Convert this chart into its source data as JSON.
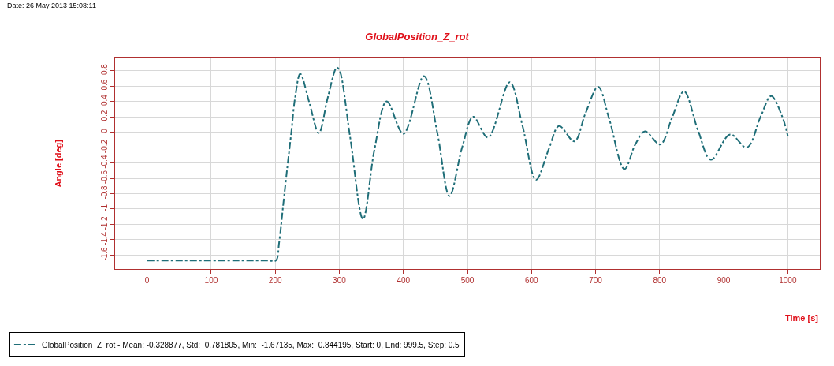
{
  "chart_data": {
    "type": "line",
    "title": "GlobalPosition_Z_rot",
    "xlabel": "Time [s]",
    "ylabel": "Angle [deg]",
    "annotations": [
      "Date: 26 May 2013 15:08:11"
    ],
    "x": [
      0,
      100,
      150,
      190,
      201,
      206,
      212,
      218,
      225,
      231,
      239,
      253,
      268,
      282,
      296,
      300,
      317,
      337,
      355,
      374,
      400,
      432,
      453,
      472,
      492,
      509,
      532,
      566,
      586,
      607,
      627,
      643,
      667,
      684,
      704,
      721,
      745,
      762,
      777,
      801,
      819,
      838,
      860,
      880,
      910,
      936,
      958,
      974,
      991,
      1000
    ],
    "series": [
      {
        "name": "GlobalPosition_Z_rot - Mean: -0.328877, Std:  0.781805, Min:  -1.67135, Max:  0.844195, Start: 0, End: 999.5, Step: 0.5",
        "color": "#1f6e78",
        "values": [
          -1.67,
          -1.67,
          -1.67,
          -1.67,
          -1.67,
          -1.44,
          -0.98,
          -0.52,
          -0.01,
          0.45,
          0.76,
          0.39,
          -0.01,
          0.45,
          0.84,
          0.81,
          -0.07,
          -1.13,
          -0.22,
          0.4,
          -0.02,
          0.73,
          -0.01,
          -0.83,
          -0.19,
          0.2,
          -0.07,
          0.65,
          0.08,
          -0.62,
          -0.22,
          0.08,
          -0.12,
          0.24,
          0.59,
          0.18,
          -0.48,
          -0.16,
          0.01,
          -0.16,
          0.18,
          0.53,
          0.02,
          -0.36,
          -0.03,
          -0.2,
          0.21,
          0.47,
          0.21,
          -0.05
        ]
      }
    ],
    "xlim": [
      -50,
      1050
    ],
    "xticks": [
      0,
      100,
      200,
      300,
      400,
      500,
      600,
      700,
      800,
      900,
      1000
    ],
    "ylim": [
      -1.78,
      0.97
    ],
    "yticks": [
      0.8,
      0.6,
      0.4,
      0.2,
      0,
      -0.2,
      -0.4,
      -0.6,
      -0.8,
      -1,
      -1.2,
      -1.4,
      -1.6
    ],
    "grid": true,
    "legend": "bottom left",
    "line_style": "dashdot",
    "marker": "none"
  }
}
